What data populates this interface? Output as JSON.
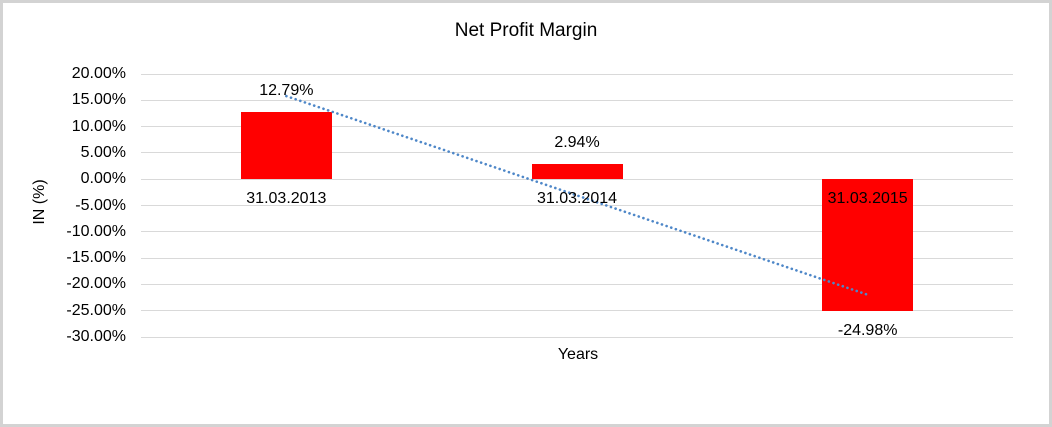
{
  "chart_data": {
    "type": "bar",
    "title": "Net Profit Margin",
    "categories": [
      "31.03.2013",
      "31.03.2014",
      "31.03.2015"
    ],
    "values": [
      12.79,
      2.94,
      -24.98
    ],
    "data_labels": [
      "12.79%",
      "2.94%",
      "-24.98%"
    ],
    "xlabel": "Years",
    "ylabel": "IN (%)",
    "ylim": [
      -30,
      20
    ],
    "ytick_step": 5,
    "ytick_labels": [
      "20.00%",
      "15.00%",
      "10.00%",
      "5.00%",
      "0.00%",
      "-5.00%",
      "-10.00%",
      "-15.00%",
      "-20.00%",
      "-25.00%",
      "-30.00%"
    ],
    "grid": true,
    "legend": "none",
    "bar_color": "#ff0000",
    "gridline_color": "#d9d9d9",
    "trendline": {
      "style": "dotted",
      "color": "#4e87c8",
      "start_value": 15.8,
      "end_value": -21.97
    }
  }
}
